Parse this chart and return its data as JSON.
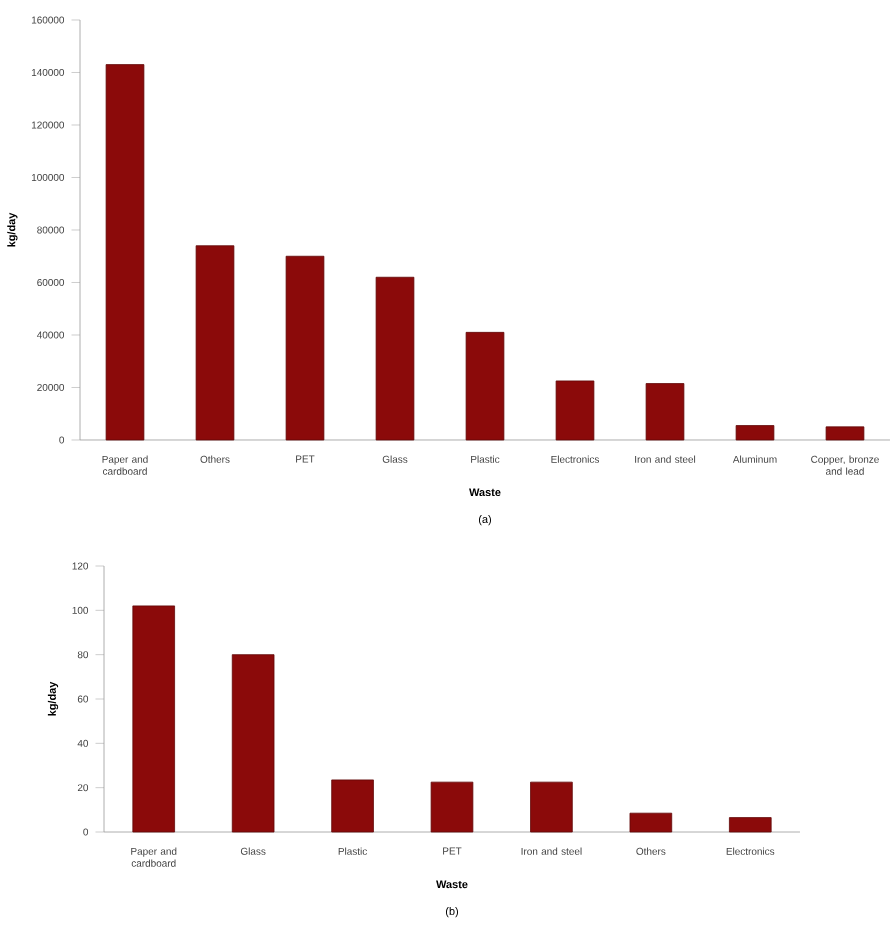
{
  "chart_data": [
    {
      "type": "bar",
      "categories": [
        "Paper and cardboard",
        "Others",
        "PET",
        "Glass",
        "Plastic",
        "Electronics",
        "Iron and steel",
        "Aluminum",
        "Copper, bronze and lead"
      ],
      "values": [
        143000,
        74000,
        70000,
        62000,
        41000,
        22500,
        21500,
        5500,
        5000
      ],
      "color": "#8b0a0a",
      "xlabel": "Waste",
      "ylabel": "kg/day",
      "ylim": [
        0,
        160000
      ],
      "yticks": [
        0,
        20000,
        40000,
        60000,
        80000,
        100000,
        120000,
        140000,
        160000
      ],
      "annotations": [
        "(a)"
      ]
    },
    {
      "type": "bar",
      "categories": [
        "Paper and cardboard",
        "Glass",
        "Plastic",
        "PET",
        "Iron and steel",
        "Others",
        "Electronics"
      ],
      "values": [
        102,
        80,
        23.5,
        22.5,
        22.5,
        8.5,
        6.5
      ],
      "color": "#8b0a0a",
      "xlabel": "Waste",
      "ylabel": "kg/day",
      "ylim": [
        0,
        120
      ],
      "yticks": [
        0,
        20,
        40,
        60,
        80,
        100,
        120
      ],
      "annotations": [
        "(b)"
      ]
    }
  ]
}
